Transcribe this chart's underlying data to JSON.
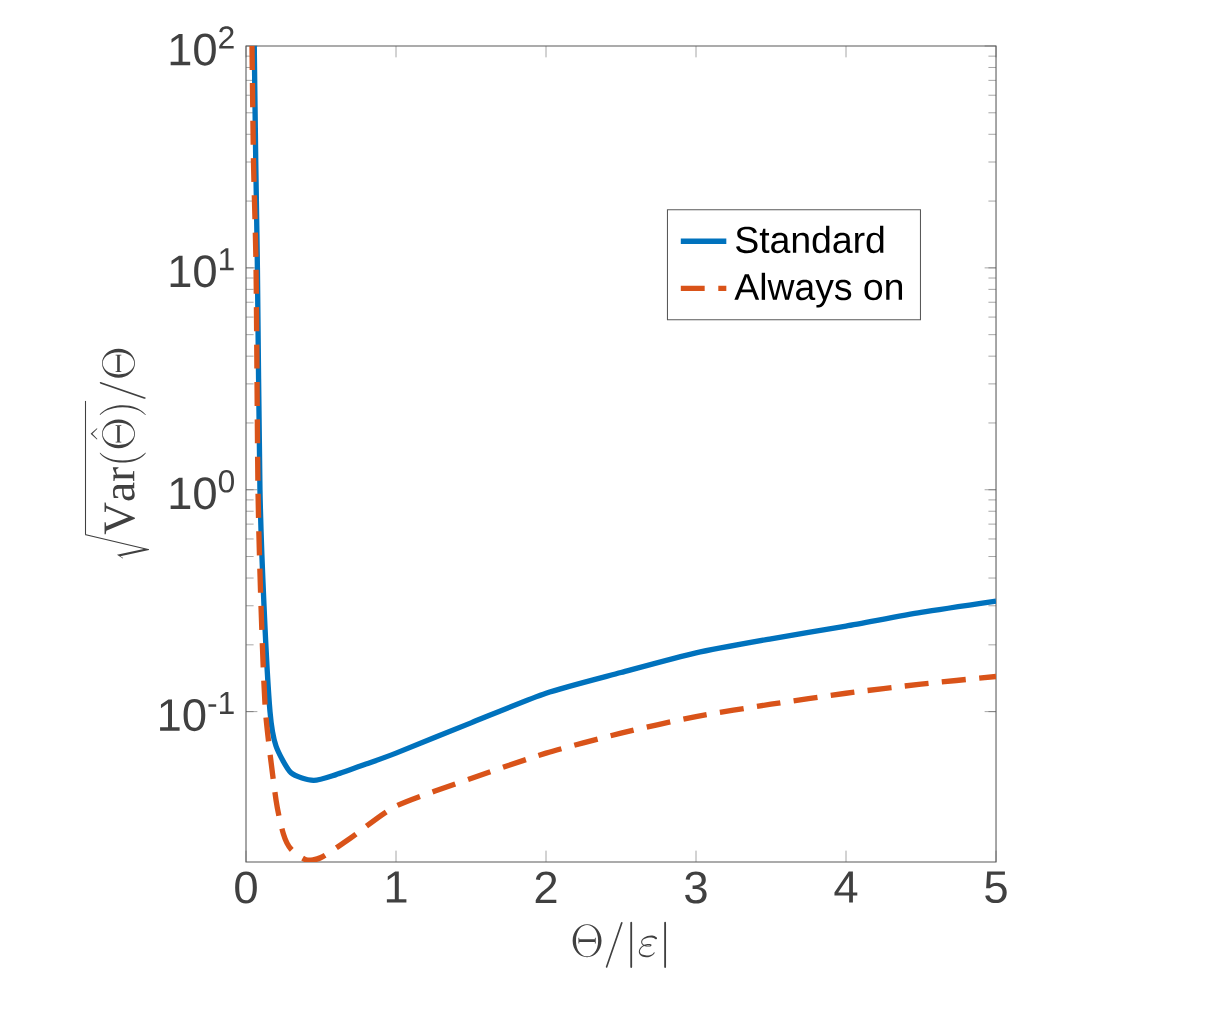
{
  "chart_data": {
    "type": "line",
    "xlabel": "\\Theta/|\\varepsilon|",
    "ylabel": "\\sqrt{\\mathrm{Var}(\\hat{\\Theta})}/\\Theta",
    "log": "y",
    "xlim": [
      0,
      5
    ],
    "ylim": [
      0.021,
      100
    ],
    "xticks": [
      0,
      1,
      2,
      3,
      4,
      5
    ],
    "yticks": [
      {
        "value": 0.1,
        "label": "10$^{-1}$"
      },
      {
        "value": 1,
        "label": "10$^{0}$"
      },
      {
        "value": 10,
        "label": "10$^{1}$"
      },
      {
        "value": 100,
        "label": "10$^{2}$"
      }
    ],
    "grid": false,
    "legend": "top right",
    "marker": "none",
    "series": [
      {
        "name": "Standard",
        "color": "#0072bd",
        "line_style": "solid",
        "x": [
          0.055,
          0.065,
          0.076,
          0.093,
          0.12,
          0.16,
          0.2,
          0.3,
          0.45,
          0.6,
          0.8,
          1,
          1.5,
          2,
          2.5,
          3,
          3.5,
          4,
          4.5,
          5
        ],
        "values": [
          100,
          30,
          10,
          1,
          0.3,
          0.1,
          0.07,
          0.053,
          0.049,
          0.052,
          0.058,
          0.065,
          0.089,
          0.121,
          0.15,
          0.184,
          0.213,
          0.243,
          0.28,
          0.315
        ]
      },
      {
        "name": "Always on",
        "color": "#d95319",
        "line_style": "dashed",
        "x": [
          0.04,
          0.05,
          0.067,
          0.08,
          0.1,
          0.13,
          0.2,
          0.25,
          0.3,
          0.4,
          0.5,
          0.7,
          1,
          1.5,
          2,
          2.5,
          3,
          3.5,
          4,
          4.5,
          5
        ],
        "values": [
          100,
          30,
          10,
          1,
          0.3,
          0.1,
          0.04,
          0.028,
          0.024,
          0.0215,
          0.022,
          0.027,
          0.0375,
          0.05,
          0.065,
          0.08,
          0.095,
          0.108,
          0.121,
          0.133,
          0.144
        ]
      }
    ]
  }
}
